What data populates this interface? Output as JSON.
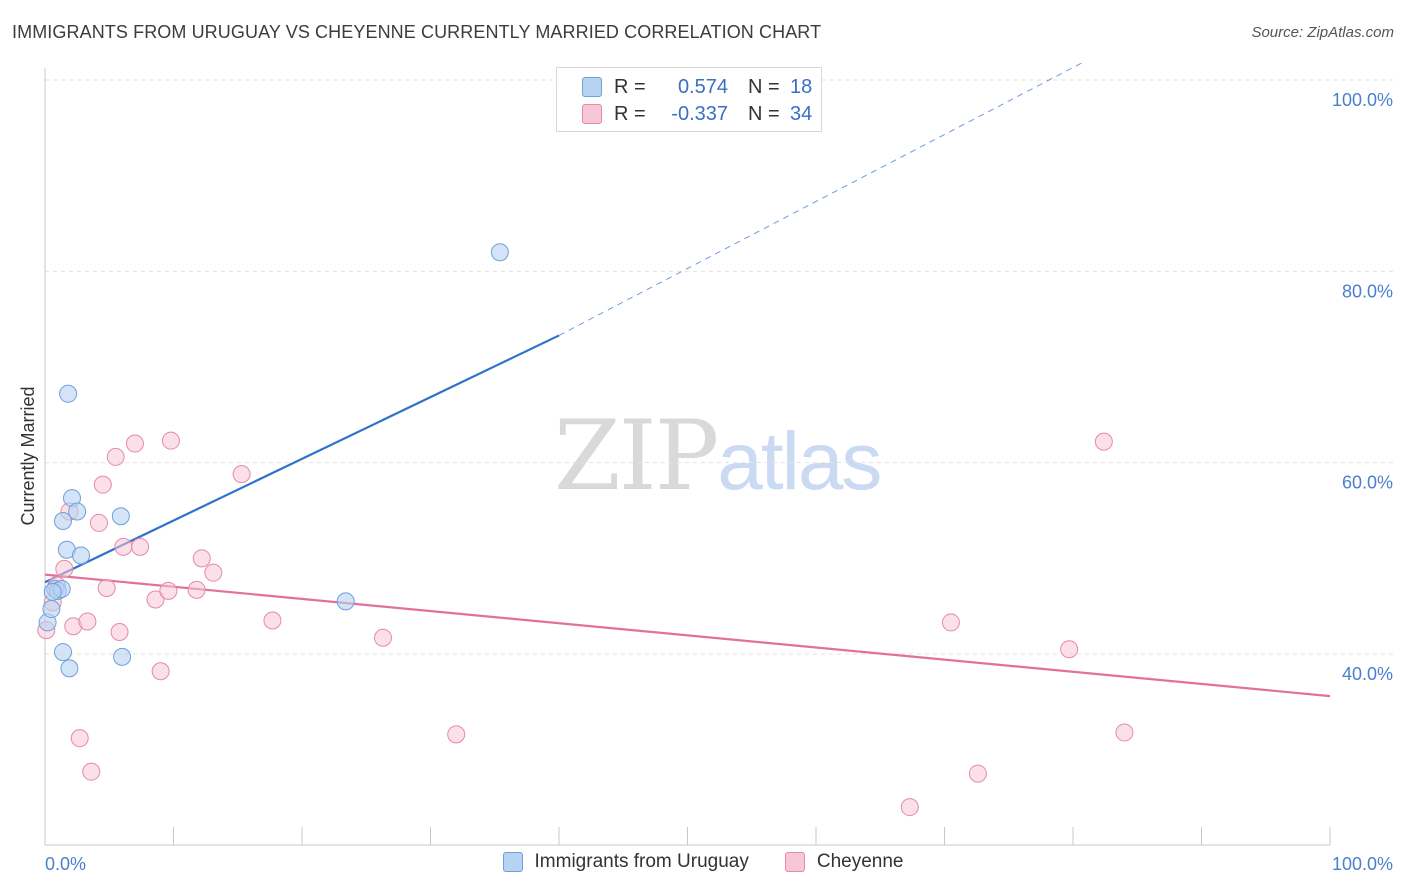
{
  "title": "IMMIGRANTS FROM URUGUAY VS CHEYENNE CURRENTLY MARRIED CORRELATION CHART",
  "source": "Source: ZipAtlas.com",
  "watermark": {
    "zip": "ZIP",
    "atlas": "atlas"
  },
  "legend": {
    "rows": [
      {
        "r_label": "R =",
        "r_value": "0.574",
        "n_label": "N =",
        "n_value": "18"
      },
      {
        "r_label": "R =",
        "r_value": "-0.337",
        "n_label": "N =",
        "n_value": "34"
      }
    ]
  },
  "colors": {
    "blue_fill": "#b8d2f2",
    "blue_stroke": "#6f9fdc",
    "blue_line": "#2f72cc",
    "pink_fill": "#f7c7d6",
    "pink_stroke": "#e58aa8",
    "pink_line": "#e2719a",
    "grid": "#e2e2e2",
    "axis": "#c8c8c8",
    "tick_text": "#4a7fd0"
  },
  "chart_data": {
    "type": "scatter",
    "title": "IMMIGRANTS FROM URUGUAY VS CHEYENNE CURRENTLY MARRIED CORRELATION CHART",
    "xlabel": "",
    "ylabel": "Currently Married",
    "xlim": [
      0,
      100
    ],
    "ylim": [
      20,
      102
    ],
    "x_tick_labels": [
      "0.0%",
      "100.0%"
    ],
    "y_ticks": [
      40,
      60,
      80,
      100
    ],
    "y_tick_labels": [
      "40.0%",
      "60.0%",
      "80.0%",
      "100.0%"
    ],
    "grid": true,
    "legend_position": "top-center",
    "series": [
      {
        "name": "Immigrants from Uruguay",
        "color": "#6f9fdc",
        "r": 0.574,
        "n": 18,
        "points": [
          [
            0.2,
            43.3
          ],
          [
            0.5,
            44.7
          ],
          [
            0.8,
            46.8
          ],
          [
            1.0,
            46.6
          ],
          [
            1.3,
            46.8
          ],
          [
            1.4,
            53.9
          ],
          [
            1.4,
            40.2
          ],
          [
            1.7,
            50.9
          ],
          [
            1.8,
            67.2
          ],
          [
            1.9,
            38.5
          ],
          [
            2.1,
            56.3
          ],
          [
            2.5,
            54.9
          ],
          [
            2.8,
            50.3
          ],
          [
            5.9,
            54.4
          ],
          [
            6.0,
            39.7
          ],
          [
            23.4,
            45.5
          ],
          [
            35.4,
            82.0
          ],
          [
            0.6,
            46.5
          ]
        ],
        "trend": {
          "x": [
            0,
            40
          ],
          "y": [
            47.5,
            73.3
          ],
          "dashed_to": [
            81,
            102
          ]
        }
      },
      {
        "name": "Cheyenne",
        "color": "#e58aa8",
        "r": -0.337,
        "n": 34,
        "points": [
          [
            0.1,
            42.5
          ],
          [
            0.6,
            45.4
          ],
          [
            0.9,
            47.2
          ],
          [
            1.5,
            48.9
          ],
          [
            1.9,
            54.9
          ],
          [
            2.2,
            42.9
          ],
          [
            2.7,
            31.2
          ],
          [
            3.3,
            43.4
          ],
          [
            3.6,
            27.7
          ],
          [
            4.2,
            53.7
          ],
          [
            4.5,
            57.7
          ],
          [
            4.8,
            46.9
          ],
          [
            5.5,
            60.6
          ],
          [
            5.8,
            42.3
          ],
          [
            6.1,
            51.2
          ],
          [
            7.0,
            62.0
          ],
          [
            7.4,
            51.2
          ],
          [
            8.6,
            45.7
          ],
          [
            9.0,
            38.2
          ],
          [
            9.6,
            46.6
          ],
          [
            9.8,
            62.3
          ],
          [
            11.8,
            46.7
          ],
          [
            12.2,
            50.0
          ],
          [
            13.1,
            48.5
          ],
          [
            15.3,
            58.8
          ],
          [
            17.7,
            43.5
          ],
          [
            26.3,
            41.7
          ],
          [
            32.0,
            31.6
          ],
          [
            67.3,
            24.0
          ],
          [
            70.5,
            43.3
          ],
          [
            72.6,
            27.5
          ],
          [
            79.7,
            40.5
          ],
          [
            82.4,
            62.2
          ],
          [
            84.0,
            31.8
          ]
        ],
        "trend": {
          "x": [
            0,
            100
          ],
          "y": [
            48.3,
            35.6
          ]
        }
      }
    ]
  },
  "bottom_legend": [
    {
      "label": "Immigrants from Uruguay"
    },
    {
      "label": "Cheyenne"
    }
  ]
}
